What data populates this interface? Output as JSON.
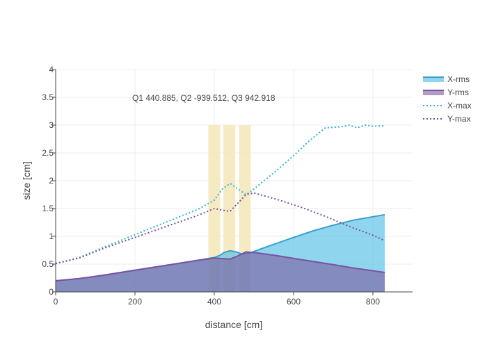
{
  "chart_data": {
    "type": "line",
    "xlabel": "distance [cm]",
    "ylabel": "size [cm]",
    "xlim": [
      0,
      900
    ],
    "ylim": [
      0,
      4
    ],
    "xticks": [
      0,
      200,
      400,
      600,
      800
    ],
    "yticks": [
      0,
      0.5,
      1,
      1.5,
      2,
      2.5,
      3,
      3.5,
      4
    ],
    "grid": true,
    "legend_position": "top-right",
    "annotation": "Q1 440.885, Q2 -939.512, Q3 942.918",
    "highlight_regions": [
      {
        "x0": 385,
        "x1": 415,
        "y0": 0,
        "y1": 3
      },
      {
        "x0": 423,
        "x1": 453,
        "y0": 0,
        "y1": 3
      },
      {
        "x0": 462,
        "x1": 492,
        "y0": 0,
        "y1": 3
      }
    ],
    "series": [
      {
        "name": "X-rms",
        "style": "area",
        "color": "#3aa0cf",
        "fill": "rgba(69,185,225,0.6)",
        "x": [
          0,
          60,
          120,
          200,
          280,
          360,
          400,
          415,
          425,
          440,
          455,
          470,
          490,
          520,
          560,
          600,
          650,
          700,
          750,
          790,
          830
        ],
        "y": [
          0.2,
          0.24,
          0.3,
          0.39,
          0.48,
          0.57,
          0.62,
          0.66,
          0.71,
          0.74,
          0.72,
          0.68,
          0.7,
          0.78,
          0.88,
          0.98,
          1.1,
          1.2,
          1.29,
          1.34,
          1.39
        ]
      },
      {
        "name": "Y-rms",
        "style": "area",
        "color": "#7a52a0",
        "fill": "rgba(125,90,160,0.6)",
        "x": [
          0,
          60,
          120,
          200,
          280,
          360,
          400,
          420,
          440,
          460,
          480,
          500,
          560,
          620,
          700,
          760,
          830
        ],
        "y": [
          0.2,
          0.24,
          0.3,
          0.39,
          0.48,
          0.57,
          0.61,
          0.6,
          0.59,
          0.65,
          0.72,
          0.71,
          0.65,
          0.58,
          0.49,
          0.42,
          0.35
        ]
      },
      {
        "name": "X-max",
        "style": "dot",
        "color": "#2fb4d4",
        "x": [
          0,
          60,
          120,
          200,
          280,
          360,
          400,
          420,
          440,
          460,
          480,
          500,
          560,
          600,
          640,
          680,
          700,
          720,
          740,
          760,
          780,
          800,
          830
        ],
        "y": [
          0.51,
          0.62,
          0.8,
          1.03,
          1.26,
          1.49,
          1.65,
          1.85,
          1.95,
          1.85,
          1.75,
          1.85,
          2.2,
          2.45,
          2.72,
          2.95,
          2.96,
          2.97,
          3.0,
          2.95,
          3.0,
          2.98,
          2.99
        ]
      },
      {
        "name": "Y-max",
        "style": "dot",
        "color": "#7a4f9a",
        "x": [
          0,
          60,
          120,
          200,
          280,
          360,
          400,
          420,
          440,
          460,
          480,
          500,
          560,
          620,
          680,
          740,
          800,
          830
        ],
        "y": [
          0.51,
          0.61,
          0.78,
          0.98,
          1.18,
          1.38,
          1.5,
          1.47,
          1.45,
          1.6,
          1.75,
          1.78,
          1.66,
          1.52,
          1.36,
          1.18,
          1.02,
          0.92
        ]
      }
    ]
  }
}
